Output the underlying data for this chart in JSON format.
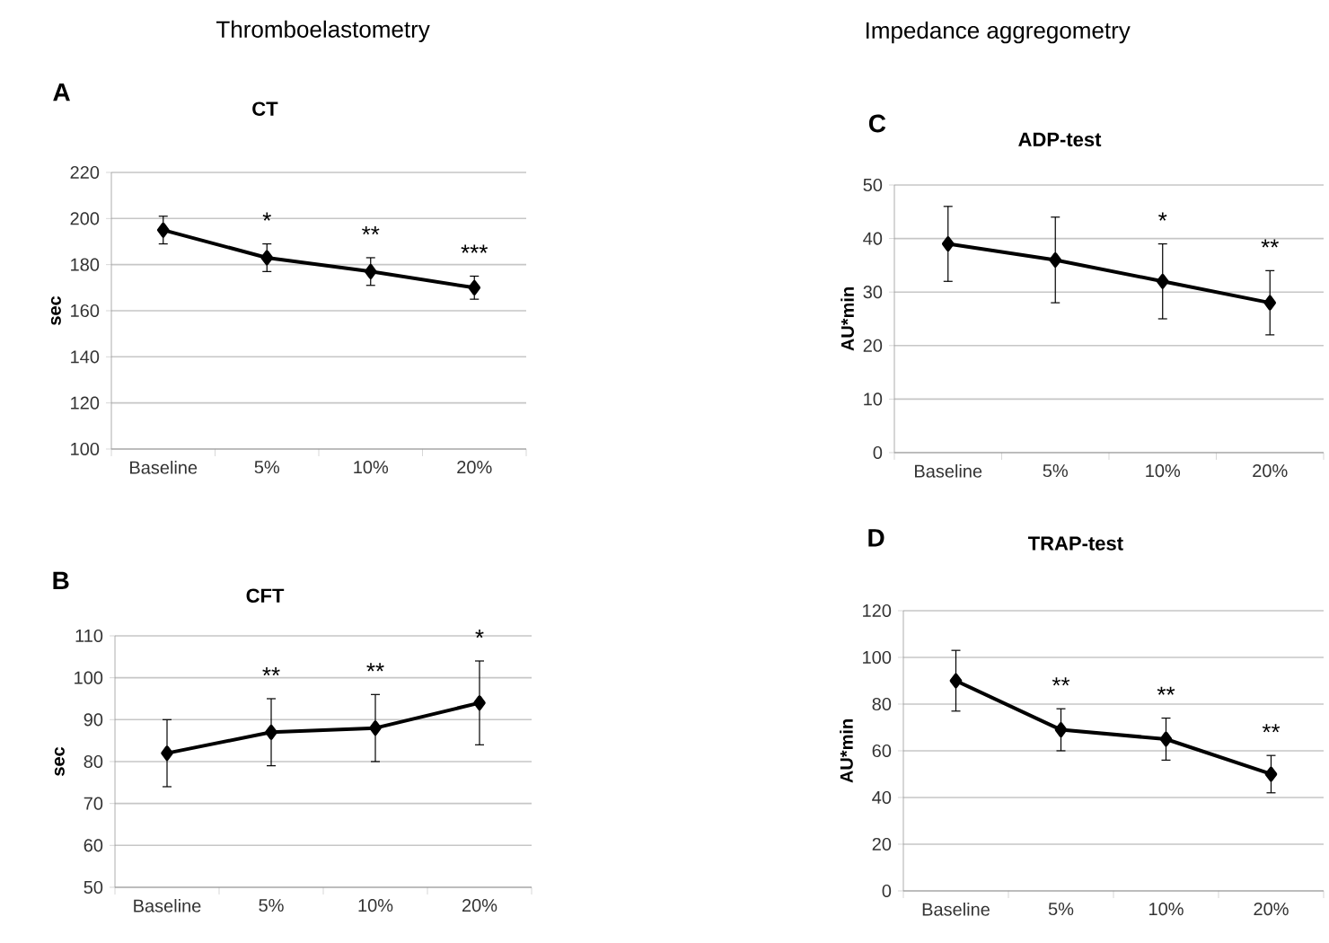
{
  "chart_data": [
    {
      "type": "line",
      "subtitle": "Thromboelastometry",
      "title": "CT",
      "ylabel": "sec",
      "categories": [
        "Baseline",
        "5%",
        "10%",
        "20%"
      ],
      "ylim": [
        100,
        220
      ],
      "yticks": [
        100,
        120,
        140,
        160,
        180,
        200,
        220
      ],
      "grid": "y",
      "marker": "diamond",
      "line_style": "solid",
      "series": [
        {
          "color": "#000000",
          "values": [
            195,
            183,
            177,
            170
          ],
          "errors": [
            6,
            6,
            6,
            5
          ]
        }
      ],
      "annotations": [
        "A",
        "*",
        "**",
        "***"
      ]
    },
    {
      "type": "line",
      "subtitle": "Impedance aggregometry",
      "title": "ADP-test",
      "ylabel": "AU*min",
      "categories": [
        "Baseline",
        "5%",
        "10%",
        "20%"
      ],
      "ylim": [
        0,
        50
      ],
      "yticks": [
        0,
        10,
        20,
        30,
        40,
        50
      ],
      "grid": "y",
      "marker": "diamond",
      "line_style": "solid",
      "series": [
        {
          "color": "#000000",
          "values": [
            39,
            36,
            32,
            28
          ],
          "errors": [
            7,
            8,
            7,
            6
          ]
        }
      ],
      "annotations": [
        "C",
        "*",
        "**"
      ]
    },
    {
      "type": "line",
      "title": "CFT",
      "ylabel": "sec",
      "categories": [
        "Baseline",
        "5%",
        "10%",
        "20%"
      ],
      "ylim": [
        50,
        110
      ],
      "yticks": [
        50,
        60,
        70,
        80,
        90,
        100,
        110
      ],
      "grid": "y",
      "marker": "diamond",
      "line_style": "solid",
      "series": [
        {
          "color": "#000000",
          "values": [
            82,
            87,
            88,
            94
          ],
          "errors": [
            8,
            8,
            8,
            10
          ]
        }
      ],
      "annotations": [
        "B",
        "**",
        "**",
        "*"
      ]
    },
    {
      "type": "line",
      "title": "TRAP-test",
      "ylabel": "AU*min",
      "categories": [
        "Baseline",
        "5%",
        "10%",
        "20%"
      ],
      "ylim": [
        0,
        120
      ],
      "yticks": [
        0,
        20,
        40,
        60,
        80,
        100,
        120
      ],
      "grid": "y",
      "marker": "diamond",
      "line_style": "solid",
      "series": [
        {
          "color": "#000000",
          "values": [
            90,
            69,
            65,
            50
          ],
          "errors": [
            13,
            9,
            9,
            8
          ]
        }
      ],
      "annotations": [
        "D",
        "**",
        "**",
        "**"
      ]
    }
  ]
}
